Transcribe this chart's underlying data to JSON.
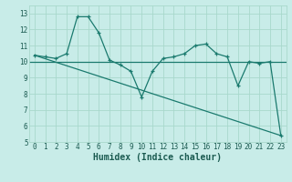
{
  "xlabel": "Humidex (Indice chaleur)",
  "background_color": "#c8ece8",
  "grid_color": "#a8d8cc",
  "line_color": "#1a7a6e",
  "xlim": [
    -0.5,
    23.5
  ],
  "ylim": [
    5,
    13.5
  ],
  "yticks": [
    5,
    6,
    7,
    8,
    9,
    10,
    11,
    12,
    13
  ],
  "xticks": [
    0,
    1,
    2,
    3,
    4,
    5,
    6,
    7,
    8,
    9,
    10,
    11,
    12,
    13,
    14,
    15,
    16,
    17,
    18,
    19,
    20,
    21,
    22,
    23
  ],
  "line1_x": [
    0,
    1,
    2,
    3,
    4,
    5,
    6,
    7,
    8,
    9,
    10,
    11,
    12,
    13,
    14,
    15,
    16,
    17,
    18,
    19,
    20,
    21,
    22,
    23
  ],
  "line1_y": [
    10.4,
    10.3,
    10.2,
    10.5,
    12.8,
    12.8,
    11.8,
    10.1,
    9.8,
    9.4,
    7.8,
    9.4,
    10.2,
    10.3,
    10.5,
    11.0,
    11.1,
    10.5,
    10.3,
    8.5,
    10.0,
    9.9,
    10.0,
    5.4
  ],
  "line2_x": [
    0,
    23
  ],
  "line2_y": [
    10.4,
    5.4
  ],
  "hline_y": 10.0,
  "font_color": "#1a5a50",
  "tick_fontsize": 5.5,
  "label_fontsize": 7.0
}
